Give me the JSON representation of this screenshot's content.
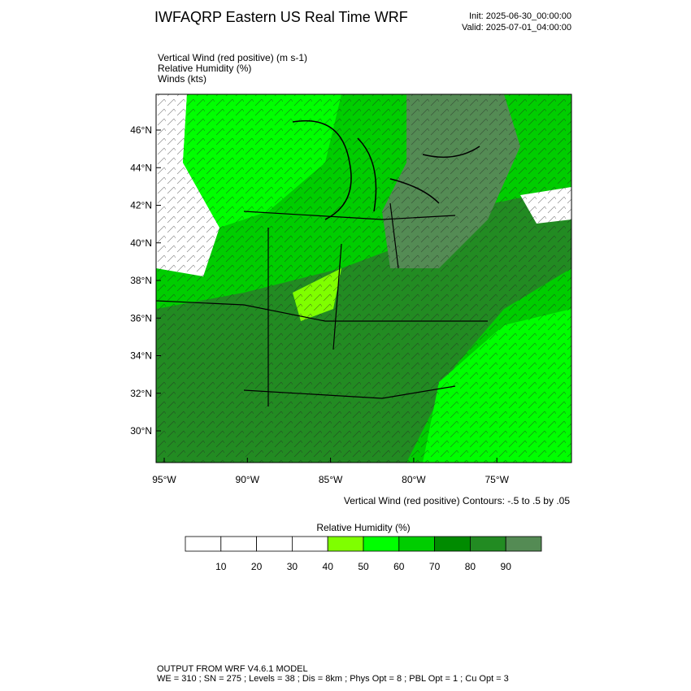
{
  "header": {
    "title": "IWFAQRP Eastern US Real Time WRF",
    "init": "Init: 2025-06-30_00:00:00",
    "valid": "Valid: 2025-07-01_04:00:00"
  },
  "fields": [
    "Vertical Wind (red positive)   (m s-1)",
    "Relative Humidity   (%)",
    "Winds   (kts)"
  ],
  "map": {
    "lat_labels": [
      "46°N",
      "44°N",
      "42°N",
      "40°N",
      "38°N",
      "36°N",
      "34°N",
      "32°N",
      "30°N"
    ],
    "lon_labels": [
      "95°W",
      "90°W",
      "85°W",
      "80°W",
      "75°W"
    ],
    "contour_note": "Vertical Wind (red positive) Contours: -.5 to .5 by .05"
  },
  "colorbar": {
    "title": "Relative Humidity   (%)",
    "labels": [
      "10",
      "20",
      "30",
      "40",
      "50",
      "60",
      "70",
      "80",
      "90"
    ],
    "colors": [
      "#ffffff",
      "#ffffff",
      "#ffffff",
      "#ffffff",
      "#7fff00",
      "#00ff00",
      "#00cd00",
      "#008b00",
      "#228b22",
      "#548b54"
    ]
  },
  "footer": {
    "line1": "OUTPUT FROM WRF V4.6.1 MODEL",
    "line2": "WE = 310 ; SN = 275 ; Levels = 38 ; Dis = 8km ; Phys Opt = 8 ; PBL Opt = 1 ; Cu Opt = 3"
  }
}
